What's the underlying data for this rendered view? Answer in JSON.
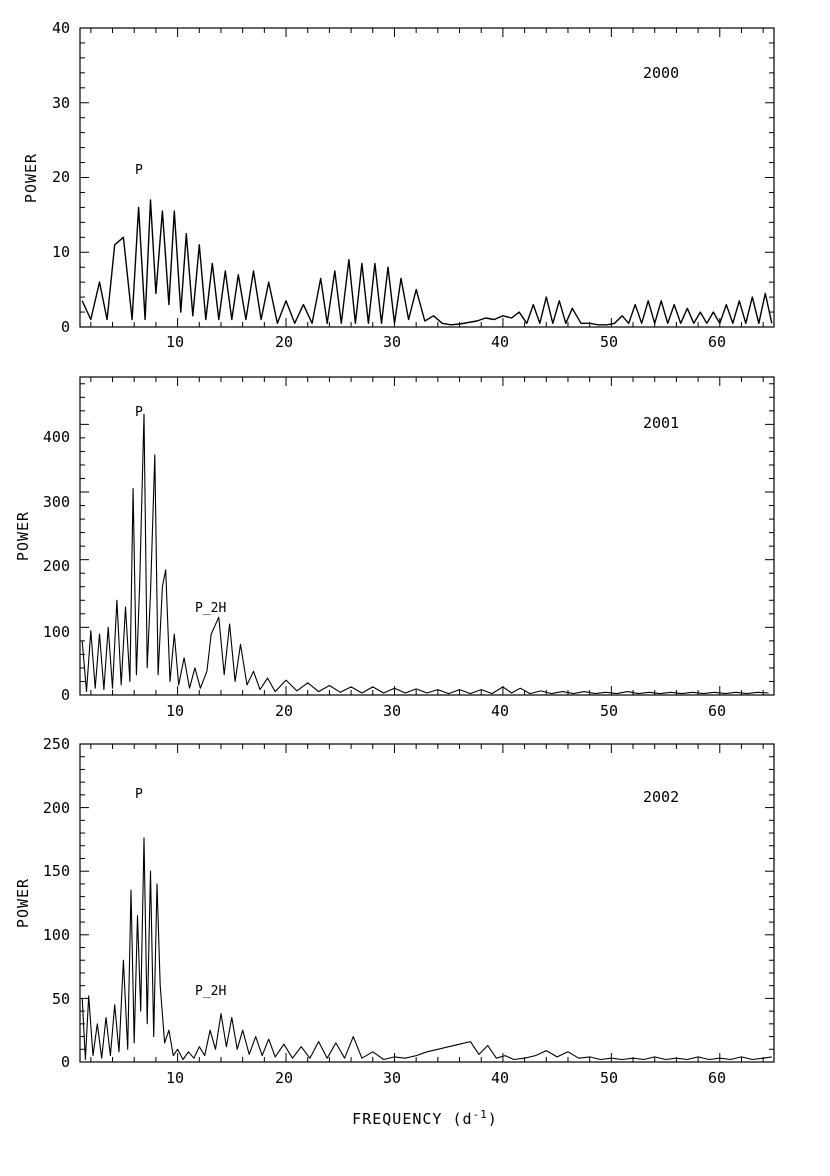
{
  "chart_data": [
    {
      "type": "line",
      "xlabel": "",
      "ylabel": "POWER",
      "xlim": [
        1,
        65
      ],
      "ylim": [
        0,
        40
      ],
      "xticks": [
        "10",
        "20",
        "30",
        "40",
        "50",
        "60"
      ],
      "yticks": [
        "0",
        "10",
        "20",
        "30",
        "40"
      ],
      "annotations": [
        {
          "text": "2000",
          "x": 51,
          "y": 34
        },
        {
          "text": "P",
          "x": 6.9,
          "y": 20.5
        }
      ],
      "series": [
        {
          "x": [
            1.2,
            2,
            2.8,
            3.5,
            4.2,
            5,
            5.8,
            6.4,
            7,
            7.5,
            8,
            8.6,
            9.2,
            9.7,
            10.3,
            10.8,
            11.4,
            12,
            12.6,
            13.2,
            13.8,
            14.4,
            15,
            15.6,
            16.3,
            17,
            17.7,
            18.4,
            19.2,
            20,
            20.8,
            21.6,
            22.4,
            23.2,
            23.8,
            24.5,
            25.1,
            25.8,
            26.4,
            27,
            27.6,
            28.2,
            28.8,
            29.4,
            30,
            30.6,
            31.3,
            32,
            32.8,
            33.6,
            34.4,
            35.2,
            36,
            36.8,
            37.6,
            38.4,
            39.2,
            40,
            40.8,
            41.5,
            42.2,
            42.8,
            43.4,
            44,
            44.6,
            45.2,
            45.8,
            46.4,
            47.2,
            48,
            48.8,
            49.6,
            50.3,
            51,
            51.6,
            52.2,
            52.8,
            53.4,
            54,
            54.6,
            55.2,
            55.8,
            56.4,
            57,
            57.6,
            58.2,
            58.8,
            59.4,
            60,
            60.6,
            61.2,
            61.8,
            62.4,
            63,
            63.6,
            64.2,
            64.8
          ],
          "y": [
            3.5,
            1,
            6,
            1,
            11,
            12,
            1,
            16,
            1,
            17,
            4.5,
            15.5,
            3,
            15.5,
            2,
            12.5,
            1.5,
            11,
            1,
            8.5,
            1,
            7.5,
            1,
            7,
            1,
            7.5,
            1,
            6,
            0.5,
            3.5,
            0.5,
            3,
            0.5,
            6.5,
            0.5,
            7.5,
            0.5,
            9,
            0.5,
            8.5,
            0.5,
            8.5,
            0.5,
            8,
            0.5,
            6.5,
            1,
            5,
            0.8,
            1.5,
            0.5,
            0.3,
            0.4,
            0.6,
            0.8,
            1.2,
            1,
            1.5,
            1.2,
            2,
            0.5,
            3,
            0.5,
            4,
            0.5,
            3.5,
            0.5,
            2.5,
            0.5,
            0.5,
            0.3,
            0.3,
            0.5,
            1.5,
            0.5,
            3,
            0.5,
            3.5,
            0.5,
            3.5,
            0.5,
            3,
            0.5,
            2.5,
            0.5,
            2,
            0.5,
            2,
            0.5,
            3,
            0.5,
            3.5,
            0.5,
            4,
            0.5,
            4.5,
            0.5
          ]
        }
      ]
    },
    {
      "type": "line",
      "xlabel": "",
      "ylabel": "POWER",
      "xlim": [
        1,
        65
      ],
      "ylim": [
        0,
        470
      ],
      "xticks": [
        "10",
        "20",
        "30",
        "40",
        "50",
        "60"
      ],
      "yticks": [
        "0",
        "100",
        "200",
        "300",
        "400"
      ],
      "annotations": [
        {
          "text": "2001",
          "x": 51,
          "y": 410
        },
        {
          "text": "P",
          "x": 6.9,
          "y": 430
        },
        {
          "text": "P_2H",
          "x": 13.8,
          "y": 127
        }
      ],
      "series": [
        {
          "x": [
            1.2,
            1.6,
            2,
            2.4,
            2.8,
            3.2,
            3.6,
            4,
            4.4,
            4.8,
            5.2,
            5.6,
            5.9,
            6.2,
            6.5,
            6.9,
            7.2,
            7.5,
            7.9,
            8.2,
            8.6,
            8.9,
            9.3,
            9.7,
            10.1,
            10.6,
            11.1,
            11.6,
            12.1,
            12.7,
            13.1,
            13.8,
            14.3,
            14.8,
            15.3,
            15.8,
            16.4,
            17,
            17.6,
            18.3,
            19,
            20,
            21,
            22,
            23,
            24,
            25,
            26,
            27,
            28,
            29,
            30,
            31,
            32,
            33,
            34,
            35,
            36,
            37,
            38,
            39,
            40,
            40.8,
            41.6,
            42.5,
            43.5,
            44.5,
            45.5,
            46.5,
            47.5,
            48.5,
            49.5,
            50.5,
            51.5,
            52.5,
            53.5,
            54.5,
            55.5,
            56.5,
            57.5,
            58.5,
            59.5,
            60.5,
            61.5,
            62.5,
            63.5,
            64.5
          ],
          "y": [
            80,
            5,
            95,
            10,
            90,
            8,
            100,
            10,
            140,
            15,
            130,
            20,
            305,
            30,
            160,
            415,
            40,
            150,
            355,
            30,
            160,
            185,
            20,
            90,
            15,
            55,
            10,
            40,
            10,
            35,
            90,
            115,
            30,
            105,
            20,
            75,
            15,
            35,
            8,
            25,
            5,
            22,
            6,
            18,
            5,
            14,
            4,
            12,
            3,
            12,
            3,
            10,
            3,
            9,
            3,
            8,
            2,
            8,
            2,
            8,
            2,
            12,
            3,
            10,
            2,
            6,
            2,
            5,
            2,
            5,
            2,
            4,
            2,
            5,
            2,
            4,
            2,
            4,
            2,
            4,
            2,
            4,
            2,
            4,
            2,
            4,
            3
          ]
        }
      ]
    },
    {
      "type": "line",
      "xlabel": "FREQUENCY (d",
      "xlabel_superscript": "-1",
      "xlabel_suffix": ")",
      "ylabel": "POWER",
      "xlim": [
        1,
        65
      ],
      "ylim": [
        0,
        250
      ],
      "xticks": [
        "10",
        "20",
        "30",
        "40",
        "50",
        "60"
      ],
      "yticks": [
        "0",
        "50",
        "100",
        "150",
        "200",
        "250"
      ],
      "annotations": [
        {
          "text": "2002",
          "x": 51,
          "y": 205
        },
        {
          "text": "P",
          "x": 6.9,
          "y": 205
        },
        {
          "text": "P_2H",
          "x": 14,
          "y": 55
        }
      ],
      "series": [
        {
          "x": [
            1.2,
            1.5,
            1.8,
            2.2,
            2.6,
            3,
            3.4,
            3.8,
            4.2,
            4.6,
            5,
            5.4,
            5.7,
            6,
            6.3,
            6.6,
            6.9,
            7.2,
            7.5,
            7.8,
            8.1,
            8.4,
            8.8,
            9.2,
            9.6,
            10,
            10.5,
            11,
            11.5,
            12,
            12.5,
            13,
            13.5,
            14,
            14.5,
            15,
            15.5,
            16,
            16.6,
            17.2,
            17.8,
            18.4,
            19,
            19.8,
            20.6,
            21.4,
            22.2,
            23,
            23.8,
            24.6,
            25.4,
            26.2,
            27,
            28,
            29,
            30,
            31,
            32,
            33,
            34,
            35,
            36,
            37,
            37.8,
            38.6,
            39.4,
            40.2,
            41,
            42,
            43,
            44,
            45,
            46,
            47,
            48,
            49,
            50,
            51,
            52,
            53,
            54,
            55,
            56,
            57,
            58,
            59,
            60,
            61,
            62,
            63,
            64,
            64.8
          ],
          "y": [
            50,
            2,
            52,
            5,
            30,
            3,
            35,
            5,
            45,
            8,
            80,
            10,
            135,
            15,
            115,
            40,
            176,
            30,
            150,
            20,
            140,
            60,
            15,
            25,
            5,
            10,
            2,
            8,
            3,
            12,
            5,
            25,
            10,
            38,
            12,
            35,
            10,
            25,
            6,
            20,
            5,
            18,
            4,
            14,
            3,
            12,
            3,
            16,
            3,
            15,
            3,
            20,
            3,
            8,
            2,
            4,
            3,
            5,
            8,
            10,
            12,
            14,
            16,
            6,
            13,
            3,
            5,
            2,
            3,
            5,
            9,
            4,
            8,
            3,
            4,
            2,
            3,
            2,
            3,
            2,
            4,
            2,
            3,
            2,
            4,
            2,
            3,
            2,
            4,
            2,
            3,
            4
          ]
        }
      ]
    }
  ]
}
